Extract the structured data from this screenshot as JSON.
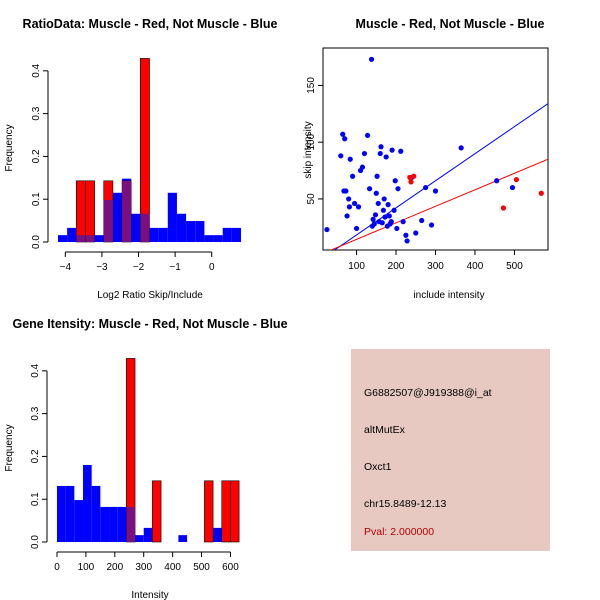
{
  "chart_data": [
    {
      "type": "bar",
      "panel": "ratio-histogram",
      "title": "RatioData: Muscle - Red, Not Muscle - Blue",
      "xlabel": "Log2 Ratio Skip/Include",
      "ylabel": "Frequency",
      "xlim": [
        -4.2,
        0.8
      ],
      "ylim": [
        0,
        0.43
      ],
      "xticks": [
        -4,
        -3,
        -2,
        -1,
        0
      ],
      "yticks": [
        0.0,
        0.1,
        0.2,
        0.3,
        0.4
      ],
      "ytick_labels": [
        "0.0",
        "0.1",
        "0.2",
        "0.3",
        "0.4"
      ],
      "bin_width": 0.25,
      "series": [
        {
          "name": "Not Muscle",
          "color": "#0000ff",
          "bins": [
            {
              "x0": -4.2,
              "value": 0.016
            },
            {
              "x0": -3.95,
              "value": 0.033
            },
            {
              "x0": -3.7,
              "value": 0.016
            },
            {
              "x0": -3.45,
              "value": 0.016
            },
            {
              "x0": -3.2,
              "value": 0.016
            },
            {
              "x0": -2.95,
              "value": 0.098
            },
            {
              "x0": -2.7,
              "value": 0.115
            },
            {
              "x0": -2.45,
              "value": 0.148
            },
            {
              "x0": -2.2,
              "value": 0.066
            },
            {
              "x0": -1.95,
              "value": 0.066
            },
            {
              "x0": -1.7,
              "value": 0.033
            },
            {
              "x0": -1.45,
              "value": 0.033
            },
            {
              "x0": -1.2,
              "value": 0.115
            },
            {
              "x0": -0.95,
              "value": 0.066
            },
            {
              "x0": -0.7,
              "value": 0.049
            },
            {
              "x0": -0.45,
              "value": 0.049
            },
            {
              "x0": -0.2,
              "value": 0.016
            },
            {
              "x0": 0.05,
              "value": 0.016
            },
            {
              "x0": 0.3,
              "value": 0.033
            },
            {
              "x0": 0.55,
              "value": 0.033
            }
          ]
        },
        {
          "name": "Muscle",
          "color": "#ff0000",
          "bins": [
            {
              "x0": -3.7,
              "value": 0.143
            },
            {
              "x0": -3.45,
              "value": 0.143
            },
            {
              "x0": -2.95,
              "value": 0.143
            },
            {
              "x0": -2.45,
              "value": 0.143
            },
            {
              "x0": -1.95,
              "value": 0.429
            }
          ]
        }
      ]
    },
    {
      "type": "scatter",
      "panel": "intensity-scatter",
      "title": "Muscle - Red, Not Muscle - Blue",
      "xlabel": "include intensity",
      "ylabel": "skip intensity",
      "xlim": [
        15,
        585
      ],
      "ylim": [
        5,
        183
      ],
      "xticks": [
        100,
        200,
        300,
        400,
        500
      ],
      "yticks": [
        50,
        100,
        150
      ],
      "series": [
        {
          "name": "Not Muscle",
          "color": "#0000ff",
          "points": [
            [
              25,
              23
            ],
            [
              60,
              88
            ],
            [
              65,
              107
            ],
            [
              68,
              57
            ],
            [
              70,
              103
            ],
            [
              73,
              57
            ],
            [
              76,
              35
            ],
            [
              80,
              50
            ],
            [
              82,
              43
            ],
            [
              84,
              85
            ],
            [
              90,
              70
            ],
            [
              95,
              46
            ],
            [
              100,
              24
            ],
            [
              105,
              43
            ],
            [
              110,
              75
            ],
            [
              115,
              78
            ],
            [
              120,
              90
            ],
            [
              128,
              106
            ],
            [
              133,
              59
            ],
            [
              138,
              173
            ],
            [
              140,
              26
            ],
            [
              142,
              32
            ],
            [
              145,
              28
            ],
            [
              148,
              36
            ],
            [
              150,
              55
            ],
            [
              152,
              70
            ],
            [
              155,
              46
            ],
            [
              157,
              30
            ],
            [
              160,
              90
            ],
            [
              162,
              96
            ],
            [
              165,
              29
            ],
            [
              168,
              40
            ],
            [
              170,
              50
            ],
            [
              172,
              34
            ],
            [
              175,
              87
            ],
            [
              178,
              26
            ],
            [
              180,
              45
            ],
            [
              183,
              35
            ],
            [
              185,
              28
            ],
            [
              188,
              30
            ],
            [
              190,
              93
            ],
            [
              195,
              40
            ],
            [
              198,
              66
            ],
            [
              202,
              24
            ],
            [
              205,
              59
            ],
            [
              212,
              92
            ],
            [
              218,
              30
            ],
            [
              225,
              18
            ],
            [
              228,
              13
            ],
            [
              240,
              69
            ],
            [
              250,
              20
            ],
            [
              265,
              31
            ],
            [
              275,
              60
            ],
            [
              290,
              27
            ],
            [
              300,
              57
            ],
            [
              365,
              95
            ],
            [
              455,
              66
            ],
            [
              495,
              60
            ]
          ]
        },
        {
          "name": "Muscle",
          "color": "#ff0000",
          "points": [
            [
              235,
              69
            ],
            [
              238,
              65
            ],
            [
              245,
              70
            ],
            [
              472,
              42
            ],
            [
              505,
              67
            ],
            [
              568,
              55
            ]
          ]
        }
      ],
      "fit_lines": [
        {
          "name": "Not Muscle fit",
          "color": "#0000ff",
          "x": [
            15,
            585
          ],
          "y": [
            -2,
            134
          ]
        },
        {
          "name": "Muscle fit",
          "color": "#ff0000",
          "x": [
            15,
            585
          ],
          "y": [
            2,
            85
          ]
        }
      ]
    },
    {
      "type": "bar",
      "panel": "intensity-histogram",
      "title": "Gene Itensity: Muscle - Red, Not Muscle - Blue",
      "xlabel": "Intensity",
      "ylabel": "Frequency",
      "xlim": [
        0,
        640
      ],
      "ylim": [
        0,
        0.43
      ],
      "xticks": [
        0,
        100,
        200,
        300,
        400,
        500,
        600
      ],
      "yticks": [
        0.0,
        0.1,
        0.2,
        0.3,
        0.4
      ],
      "ytick_labels": [
        "0.0",
        "0.1",
        "0.2",
        "0.3",
        "0.4"
      ],
      "bin_width": 30,
      "series": [
        {
          "name": "Not Muscle",
          "color": "#0000ff",
          "bins": [
            {
              "x0": 0,
              "value": 0.131
            },
            {
              "x0": 30,
              "value": 0.131
            },
            {
              "x0": 60,
              "value": 0.098
            },
            {
              "x0": 90,
              "value": 0.18
            },
            {
              "x0": 120,
              "value": 0.131
            },
            {
              "x0": 150,
              "value": 0.082
            },
            {
              "x0": 180,
              "value": 0.082
            },
            {
              "x0": 210,
              "value": 0.082
            },
            {
              "x0": 240,
              "value": 0.082
            },
            {
              "x0": 270,
              "value": 0.016
            },
            {
              "x0": 300,
              "value": 0.033
            },
            {
              "x0": 420,
              "value": 0.016
            },
            {
              "x0": 540,
              "value": 0.033
            }
          ]
        },
        {
          "name": "Muscle",
          "color": "#ff0000",
          "bins": [
            {
              "x0": 240,
              "value": 0.429
            },
            {
              "x0": 330,
              "value": 0.143
            },
            {
              "x0": 510,
              "value": 0.143
            },
            {
              "x0": 570,
              "value": 0.143
            },
            {
              "x0": 600,
              "value": 0.143
            }
          ]
        }
      ]
    }
  ],
  "info_panel": {
    "probe_id": "G6882507@J919388@i_at",
    "event_type": "altMutEx",
    "gene": "Oxct1",
    "location": "chr15.8489-12.13",
    "pval": "Pval: 2.000000",
    "background_color": "#e7c9c2",
    "pval_color": "#b00000"
  }
}
